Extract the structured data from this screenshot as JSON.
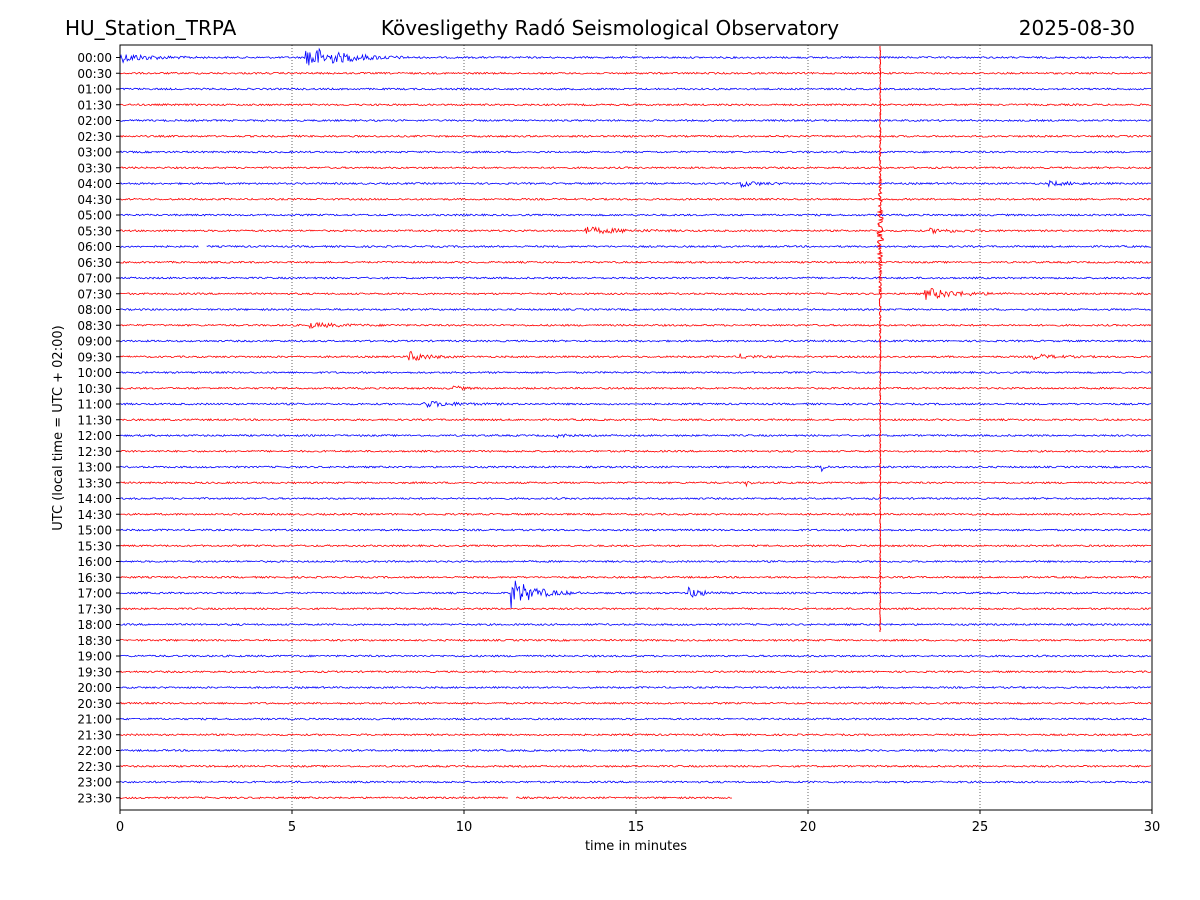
{
  "header": {
    "station": "HU_Station_TRPA",
    "observatory": "Kövesligethy Radó Seismological Observatory",
    "date": "2025-08-30"
  },
  "chart_data": {
    "type": "line",
    "subtype": "helicorder",
    "title": "Kövesligethy Radó Seismological Observatory",
    "xlabel": "time in minutes",
    "ylabel": "UTC (local time = UTC + 02:00)",
    "xlim": [
      0,
      30
    ],
    "x_ticks": [
      0,
      5,
      10,
      15,
      20,
      25,
      30
    ],
    "grid": "vertical dotted lines at each x tick",
    "row_labels": [
      "00:00",
      "00:30",
      "01:00",
      "01:30",
      "02:00",
      "02:30",
      "03:00",
      "03:30",
      "04:00",
      "04:30",
      "05:00",
      "05:30",
      "06:00",
      "06:30",
      "07:00",
      "07:30",
      "08:00",
      "08:30",
      "09:00",
      "09:30",
      "10:00",
      "10:30",
      "11:00",
      "11:30",
      "12:00",
      "12:30",
      "13:00",
      "13:30",
      "14:00",
      "14:30",
      "15:00",
      "15:30",
      "16:00",
      "16:30",
      "17:00",
      "17:30",
      "18:00",
      "18:30",
      "19:00",
      "19:30",
      "20:00",
      "20:30",
      "21:00",
      "21:30",
      "22:00",
      "22:30",
      "23:00",
      "23:30"
    ],
    "colors": {
      "even_rows": "#0000ff",
      "odd_rows": "#ff0000"
    },
    "data_end": {
      "row": "23:30",
      "minute": 17.8
    },
    "gaps": [
      {
        "row": "06:00",
        "start": 2.3,
        "end": 2.5
      },
      {
        "row": "23:30",
        "start": 11.3,
        "end": 11.5
      }
    ],
    "events": [
      {
        "row": "00:00",
        "onset_minute": 0.0,
        "duration": 2.5,
        "amplitude": 0.9
      },
      {
        "row": "00:00",
        "onset_minute": 5.4,
        "duration": 3.0,
        "amplitude": 2.5,
        "color": "#0000ff"
      },
      {
        "row": "04:00",
        "onset_minute": 18.0,
        "duration": 1.6,
        "amplitude": 0.6
      },
      {
        "row": "04:00",
        "onset_minute": 27.0,
        "duration": 2.0,
        "amplitude": 0.4
      },
      {
        "row": "05:30",
        "onset_minute": 13.5,
        "duration": 3.0,
        "amplitude": 0.7
      },
      {
        "row": "05:30",
        "onset_minute": 23.5,
        "duration": 2.5,
        "amplitude": 0.4
      },
      {
        "row": "07:30",
        "onset_minute": 23.4,
        "duration": 2.5,
        "amplitude": 1.2
      },
      {
        "row": "08:30",
        "onset_minute": 5.5,
        "duration": 2.5,
        "amplitude": 0.5
      },
      {
        "row": "09:30",
        "onset_minute": 8.4,
        "duration": 1.4,
        "amplitude": 1.1
      },
      {
        "row": "09:30",
        "onset_minute": 18.0,
        "duration": 1.0,
        "amplitude": 0.5
      },
      {
        "row": "09:30",
        "onset_minute": 26.5,
        "duration": 2.0,
        "amplitude": 0.5
      },
      {
        "row": "10:30",
        "onset_minute": 9.6,
        "duration": 0.8,
        "amplitude": 0.7
      },
      {
        "row": "11:00",
        "onset_minute": 8.8,
        "duration": 2.6,
        "amplitude": 0.6
      },
      {
        "row": "12:00",
        "onset_minute": 12.7,
        "duration": 0.6,
        "amplitude": 0.5
      },
      {
        "row": "13:00",
        "onset_minute": 20.4,
        "duration": 0.3,
        "amplitude": 1.0
      },
      {
        "row": "13:30",
        "onset_minute": 18.2,
        "duration": 0.3,
        "amplitude": 0.7
      },
      {
        "row": "17:00",
        "onset_minute": 11.35,
        "duration": 2.0,
        "amplitude": 3.0
      },
      {
        "row": "17:00",
        "onset_minute": 16.5,
        "duration": 1.0,
        "amplitude": 1.4
      }
    ],
    "vertical_spike": {
      "minute": 22.1,
      "from_row": "00:00",
      "to_row": "18:00",
      "color": "#ff0000",
      "peak_row": "05:30"
    }
  }
}
